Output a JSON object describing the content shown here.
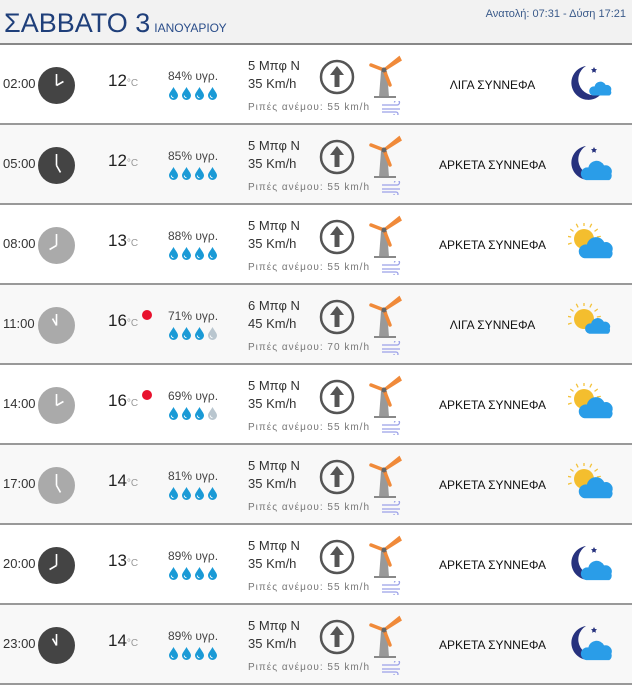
{
  "header": {
    "day": "ΣΑΒΒΑΤΟ 3",
    "month": "ΙΑΝΟΥΑΡΙΟΥ",
    "sun": "Ανατολή: 07:31  - Δύση 17:21"
  },
  "colors": {
    "title": "#1f3f7a",
    "drop": "#1a9ad6",
    "drop_empty": "#b9c6cf",
    "alert": "#e8112d",
    "clock_night": "#444444",
    "clock_day": "#aaaaaa"
  },
  "unit": "°C",
  "rows": [
    {
      "time": "02:00",
      "hour": 2,
      "night": true,
      "temp": "12",
      "alert": false,
      "humidity": "84% υγρ.",
      "drops": 4,
      "beaufort": "5 Μπφ Ν",
      "speed": "35 Km/h",
      "gust": "Ριπές ανέμου: 55 km/h",
      "desc": "ΛΙΓΑ ΣΥΝΝΕΦΑ",
      "icon": "moon-cloud-icon"
    },
    {
      "time": "05:00",
      "hour": 5,
      "night": true,
      "temp": "12",
      "alert": false,
      "humidity": "85% υγρ.",
      "drops": 4,
      "beaufort": "5 Μπφ Ν",
      "speed": "35 Km/h",
      "gust": "Ριπές ανέμου: 55 km/h",
      "desc": "ΑΡΚΕΤΑ ΣΥΝΝΕΦΑ",
      "icon": "moon-clouds-icon"
    },
    {
      "time": "08:00",
      "hour": 8,
      "night": false,
      "temp": "13",
      "alert": false,
      "humidity": "88% υγρ.",
      "drops": 4,
      "beaufort": "5 Μπφ Ν",
      "speed": "35 Km/h",
      "gust": "Ριπές ανέμου: 55 km/h",
      "desc": "ΑΡΚΕΤΑ ΣΥΝΝΕΦΑ",
      "icon": "sun-clouds-icon"
    },
    {
      "time": "11:00",
      "hour": 11,
      "night": false,
      "temp": "16",
      "alert": true,
      "humidity": "71% υγρ.",
      "drops": 3,
      "beaufort": "6 Μπφ Ν",
      "speed": "45 Km/h",
      "gust": "Ριπές ανέμου: 70 km/h",
      "desc": "ΛΙΓΑ ΣΥΝΝΕΦΑ",
      "icon": "sun-cloud-icon"
    },
    {
      "time": "14:00",
      "hour": 14,
      "night": false,
      "temp": "16",
      "alert": true,
      "humidity": "69% υγρ.",
      "drops": 3,
      "beaufort": "5 Μπφ Ν",
      "speed": "35 Km/h",
      "gust": "Ριπές ανέμου: 55 km/h",
      "desc": "ΑΡΚΕΤΑ ΣΥΝΝΕΦΑ",
      "icon": "sun-clouds-icon"
    },
    {
      "time": "17:00",
      "hour": 17,
      "night": false,
      "temp": "14",
      "alert": false,
      "humidity": "81% υγρ.",
      "drops": 4,
      "beaufort": "5 Μπφ Ν",
      "speed": "35 Km/h",
      "gust": "Ριπές ανέμου: 55 km/h",
      "desc": "ΑΡΚΕΤΑ ΣΥΝΝΕΦΑ",
      "icon": "sun-clouds-icon"
    },
    {
      "time": "20:00",
      "hour": 20,
      "night": true,
      "temp": "13",
      "alert": false,
      "humidity": "89% υγρ.",
      "drops": 4,
      "beaufort": "5 Μπφ Ν",
      "speed": "35 Km/h",
      "gust": "Ριπές ανέμου: 55 km/h",
      "desc": "ΑΡΚΕΤΑ ΣΥΝΝΕΦΑ",
      "icon": "moon-clouds-icon"
    },
    {
      "time": "23:00",
      "hour": 23,
      "night": true,
      "temp": "14",
      "alert": false,
      "humidity": "89% υγρ.",
      "drops": 4,
      "beaufort": "5 Μπφ Ν",
      "speed": "35 Km/h",
      "gust": "Ριπές ανέμου: 55 km/h",
      "desc": "ΑΡΚΕΤΑ ΣΥΝΝΕΦΑ",
      "icon": "moon-clouds-icon"
    }
  ]
}
